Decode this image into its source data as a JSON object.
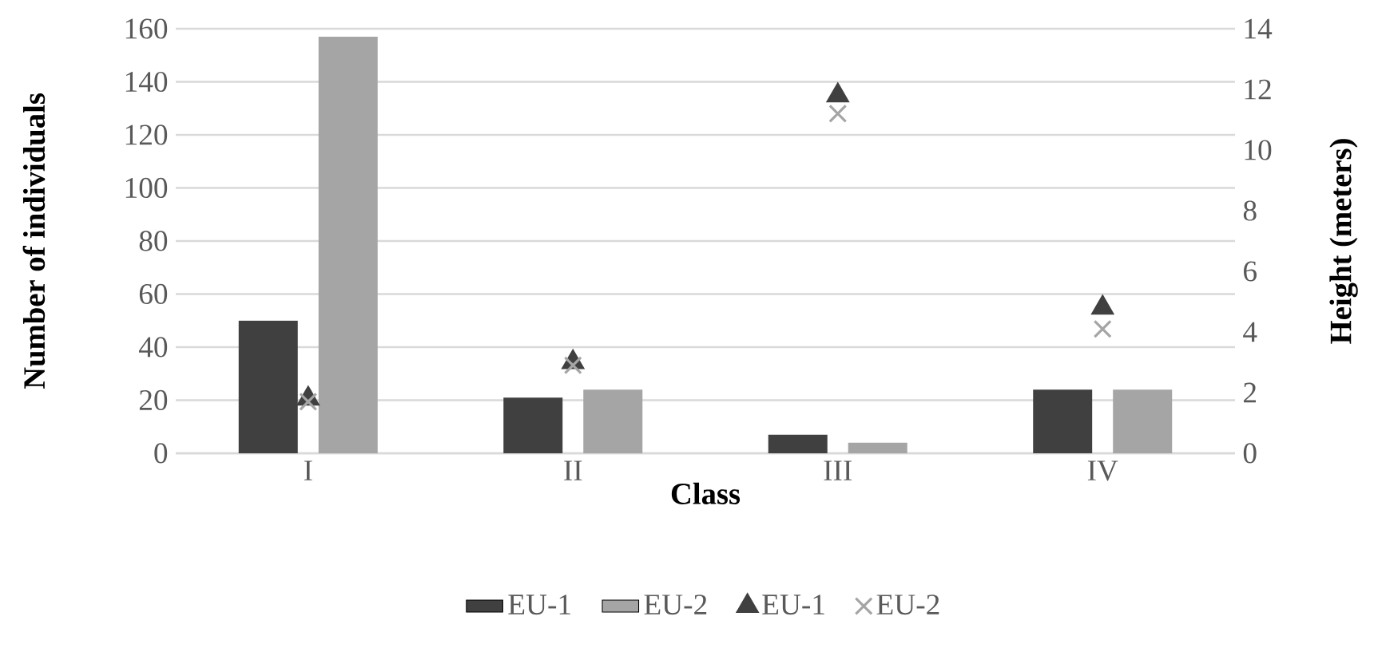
{
  "chart_data": {
    "type": "bar",
    "categories": [
      "I",
      "II",
      "III",
      "IV"
    ],
    "xlabel": "Class",
    "ylabel": "Number of individuals",
    "y2label": "Height (meters)",
    "ylim": [
      0,
      160
    ],
    "yticks": [
      0,
      20,
      40,
      60,
      80,
      100,
      120,
      140,
      160
    ],
    "y2lim": [
      0,
      14
    ],
    "y2ticks": [
      0,
      2,
      4,
      6,
      8,
      10,
      12,
      14
    ],
    "grid": "y",
    "legend": "bottom",
    "series": [
      {
        "name": "EU-1",
        "color": "#404040",
        "values": [
          50,
          21,
          7,
          24
        ]
      },
      {
        "name": "EU-2",
        "color": "#a5a5a5",
        "values": [
          157,
          24,
          4,
          24
        ]
      },
      {
        "name": "EU-1",
        "type": "scatter",
        "axis": "y2",
        "marker": "triangle",
        "color": "#404040",
        "values": [
          1.8,
          3.0,
          11.8,
          4.8
        ]
      },
      {
        "name": "EU-2",
        "type": "scatter",
        "axis": "y2",
        "marker": "cross",
        "color": "#a5a5a5",
        "values": [
          1.7,
          2.9,
          11.2,
          4.1
        ]
      }
    ]
  }
}
